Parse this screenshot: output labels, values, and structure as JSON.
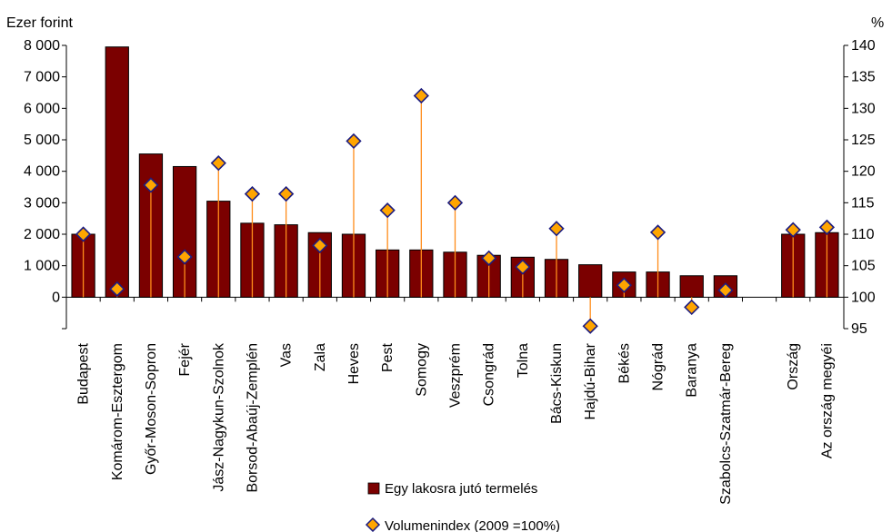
{
  "chart_data": {
    "type": "bar",
    "left_axis_title": "Ezer forint",
    "right_axis_title": "%",
    "left_ylim": [
      -1000,
      8000
    ],
    "left_ticks": [
      {
        "value": 8000,
        "label": "8 000"
      },
      {
        "value": 7000,
        "label": "7 000"
      },
      {
        "value": 6000,
        "label": "6 000"
      },
      {
        "value": 5000,
        "label": "5 000"
      },
      {
        "value": 4000,
        "label": "4 000"
      },
      {
        "value": 3000,
        "label": "3 000"
      },
      {
        "value": 2000,
        "label": "2 000"
      },
      {
        "value": 1000,
        "label": "1 000"
      },
      {
        "value": 0,
        "label": "0"
      },
      {
        "value": -1000,
        "label": ""
      }
    ],
    "right_ylim": [
      95,
      140
    ],
    "right_ticks": [
      {
        "value": 140,
        "label": "140"
      },
      {
        "value": 135,
        "label": "135"
      },
      {
        "value": 130,
        "label": "130"
      },
      {
        "value": 125,
        "label": "125"
      },
      {
        "value": 120,
        "label": "120"
      },
      {
        "value": 115,
        "label": "115"
      },
      {
        "value": 110,
        "label": "110"
      },
      {
        "value": 105,
        "label": "105"
      },
      {
        "value": 100,
        "label": "100"
      },
      {
        "value": 95,
        "label": "95"
      }
    ],
    "categories": [
      "Budapest",
      "Komárom-Esztergom",
      "Győr-Moson-Sopron",
      "Fejér",
      "Jász-Nagykun-Szolnok",
      "Borsod-Abaúj-Zemplén",
      "Vas",
      "Zala",
      "Heves",
      "Pest",
      "Somogy",
      "Veszprém",
      "Csongrád",
      "Tolna",
      "Bács-Kiskun",
      "Hajdú-Bihar",
      "Békés",
      "Nógrád",
      "Baranya",
      "Szabolcs-Szatmár-Bereg",
      "",
      "Ország",
      "Az ország megyéi"
    ],
    "series": [
      {
        "name": "Egy  lakosra jutó termelés",
        "type": "bar",
        "axis": "left",
        "values": [
          2000,
          7950,
          4550,
          4150,
          3050,
          2350,
          2300,
          2050,
          2000,
          1500,
          1500,
          1430,
          1330,
          1270,
          1200,
          1030,
          800,
          800,
          680,
          680,
          null,
          2000,
          2050
        ]
      },
      {
        "name": "Volumenindex  (2009 =100%)",
        "type": "scatter",
        "axis": "right",
        "values": [
          110,
          101.3,
          117.8,
          106.4,
          121.3,
          116.4,
          116.4,
          108.2,
          124.8,
          113.8,
          132,
          115,
          106.2,
          104.8,
          110.9,
          95.4,
          101.9,
          110.3,
          98.4,
          101.1,
          null,
          110.7,
          111.1
        ]
      }
    ],
    "colors": {
      "bar": "#7b0000",
      "marker_fill": "#ffa500",
      "marker_stroke": "#1c1c80",
      "drop_line": "#ff8c1a"
    },
    "grid": false,
    "legend_position": "bottom-center"
  }
}
